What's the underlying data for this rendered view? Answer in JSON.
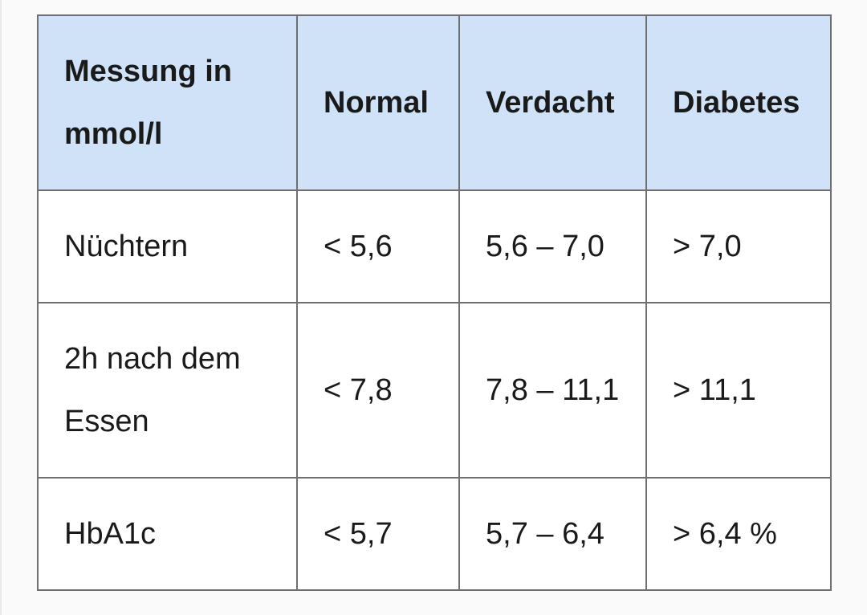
{
  "table": {
    "headers": [
      "Messung in mmol/l",
      "Normal",
      "Verdacht",
      "Diabetes"
    ],
    "rows": [
      [
        "Nüchtern",
        "< 5,6",
        "5,6 – 7,0",
        "> 7,0"
      ],
      [
        "2h nach dem Essen",
        "< 7,8",
        "7,8 – 11,1",
        "> 11,1"
      ],
      [
        "HbA1c",
        "< 5,7",
        "5,7 – 6,4",
        "> 6,4 %"
      ]
    ],
    "header_bg": "#cfe2f7",
    "border_color": "#6f6f6f"
  }
}
